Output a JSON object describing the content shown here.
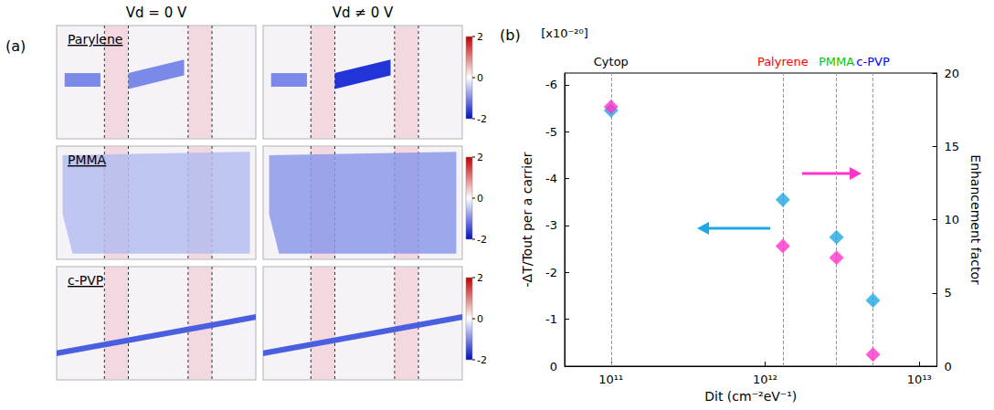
{
  "panel_a": {
    "label": "(a)",
    "columns": [
      "Vd = 0 V",
      "Vd ≠ 0 V"
    ],
    "rows": [
      {
        "label": "Parylene",
        "colorbar_range": [
          -2,
          2
        ],
        "colorbar_ticks": [
          2,
          0,
          -2
        ]
      },
      {
        "label": "PMMA",
        "colorbar_range": [
          -2,
          2
        ],
        "colorbar_ticks": [
          2,
          0,
          -2
        ]
      },
      {
        "label": "c-PVP",
        "colorbar_range": [
          -2,
          2
        ],
        "colorbar_ticks": [
          2,
          0,
          -2
        ]
      }
    ]
  },
  "chart_data": {
    "type": "scatter",
    "panel_label": "(b)",
    "x_label": "Dit (cm⁻²eV⁻¹)",
    "y_label": "-ΔT/Tout per a carrier",
    "y_multiplier_label": "[x10⁻²⁰]",
    "y2_label": "Enhancement factor",
    "x": [
      100000000000.0,
      1300000000000.0,
      2900000000000.0,
      5000000000000.0
    ],
    "series": [
      {
        "color": "#1fa8e6",
        "marker": "diamond",
        "values": [
          -5.45,
          -3.55,
          -2.75,
          -1.4
        ]
      },
      {
        "color": "#ff33cc",
        "marker": "diamond",
        "values": [
          17.7,
          8.2,
          7.4,
          0.8
        ],
        "axis": "y2"
      }
    ],
    "log": "x",
    "xlim": [
      50000000000.0,
      13000000000000.0
    ],
    "xticks": [
      {
        "value": 100000000000.0,
        "label": "10¹¹"
      },
      {
        "value": 1000000000000.0,
        "label": "10¹²"
      },
      {
        "value": 10000000000000.0,
        "label": "10¹³"
      }
    ],
    "ylim": [
      0,
      -6.25
    ],
    "yticks": [
      0,
      -1,
      -2,
      -3,
      -4,
      -5,
      -6
    ],
    "y2lim": [
      0,
      20
    ],
    "y2ticks": [
      0,
      5,
      10,
      15,
      20
    ],
    "annotations": [
      {
        "text": "Cytop",
        "x": 100000000000.0,
        "color": "#000000"
      },
      {
        "text": "Palyrene",
        "x": 1300000000000.0,
        "color": "#ff0000"
      },
      {
        "text": "PMMA",
        "x": 2900000000000.0,
        "color": "#00cc00"
      },
      {
        "text": "c-PVP",
        "x": 5000000000000.0,
        "color": "#0000ff"
      }
    ],
    "grid": false
  }
}
